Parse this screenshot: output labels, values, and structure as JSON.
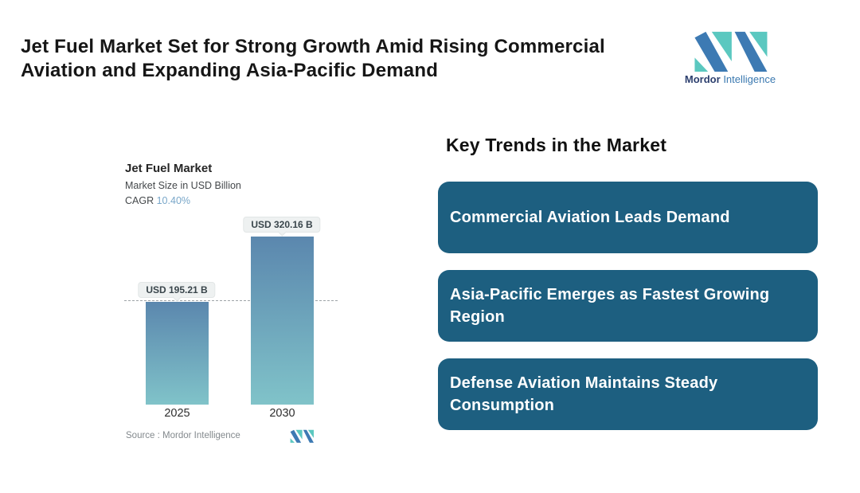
{
  "header": {
    "title_line1": "Jet Fuel Market Set for Strong Growth Amid Rising Commercial",
    "title_line2": "Aviation and Expanding Asia-Pacific Demand"
  },
  "brand": {
    "name_primary": "Mordor",
    "name_secondary": "Intelligence"
  },
  "colors": {
    "brand_blue": "#3d7ab3",
    "brand_teal": "#5bc8c0",
    "card_bg": "#1d5f80",
    "bar_gradient_top": "#5b87ae",
    "bar_gradient_bottom": "#80c3c9",
    "cagr_value_text": "#79a7c9"
  },
  "chart": {
    "title": "Jet Fuel Market",
    "subtitle": "Market Size in USD Billion",
    "cagr_label": "CAGR",
    "cagr_value": "10.40%",
    "source_label": "Source :",
    "source_value": "Mordor Intelligence"
  },
  "chart_data": {
    "type": "bar",
    "title": "Jet Fuel Market",
    "ylabel": "Market Size in USD Billion",
    "unit": "USD Billion",
    "categories": [
      "2025",
      "2030"
    ],
    "values": [
      195.21,
      320.16
    ],
    "bar_labels": [
      "USD 195.21 B",
      "USD 320.16 B"
    ],
    "cagr_percent": 10.4,
    "ylim": [
      0,
      320.16
    ],
    "grid": false,
    "dashed_reference_line_value": 195.21
  },
  "trends": {
    "heading": "Key Trends in the Market",
    "cards": [
      {
        "label": "Commercial Aviation Leads Demand"
      },
      {
        "label": "Asia-Pacific Emerges as Fastest Growing Region"
      },
      {
        "label": "Defense Aviation Maintains Steady Consumption"
      }
    ]
  }
}
